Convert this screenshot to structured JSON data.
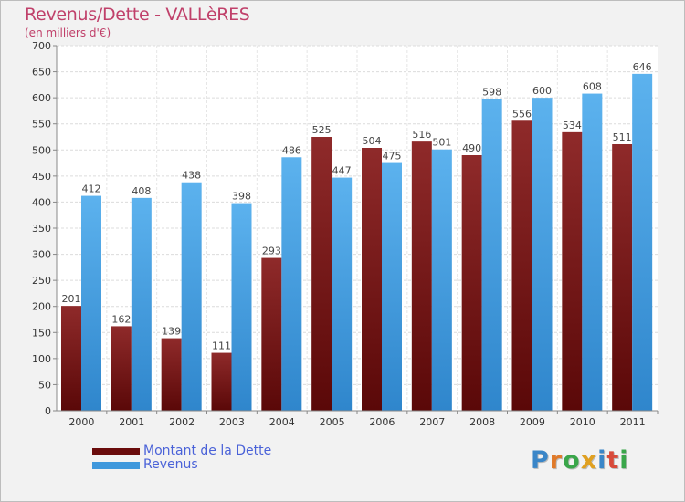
{
  "chart_data": {
    "type": "bar",
    "title": "Revenus/Dette - VALLèRES",
    "subtitle": "(en milliers d'€)",
    "xlabel": "",
    "ylabel": "",
    "categories": [
      "2000",
      "2001",
      "2002",
      "2003",
      "2004",
      "2005",
      "2006",
      "2007",
      "2008",
      "2009",
      "2010",
      "2011"
    ],
    "series": [
      {
        "name": "Montant de la Dette",
        "color": "#7a1515",
        "values": [
          201,
          162,
          139,
          111,
          293,
          525,
          504,
          516,
          490,
          556,
          534,
          511
        ]
      },
      {
        "name": "Revenus",
        "color": "#4ea6e6",
        "values": [
          412,
          408,
          438,
          398,
          486,
          447,
          475,
          501,
          598,
          600,
          608,
          646
        ]
      }
    ],
    "ylim": [
      0,
      700
    ],
    "yticks": [
      0,
      50,
      100,
      150,
      200,
      250,
      300,
      350,
      400,
      450,
      500,
      550,
      600,
      650,
      700
    ],
    "grid": true,
    "legend_position": "bottom-left",
    "data_labels": true
  },
  "brand": {
    "letters": [
      {
        "ch": "P",
        "color": "#3a86c8"
      },
      {
        "ch": "r",
        "color": "#e07a2a"
      },
      {
        "ch": "o",
        "color": "#3aa64a"
      },
      {
        "ch": "x",
        "color": "#e0a020"
      },
      {
        "ch": "i",
        "color": "#3a86c8"
      },
      {
        "ch": "t",
        "color": "#d84a3a"
      },
      {
        "ch": "i",
        "color": "#3aa64a"
      }
    ]
  }
}
